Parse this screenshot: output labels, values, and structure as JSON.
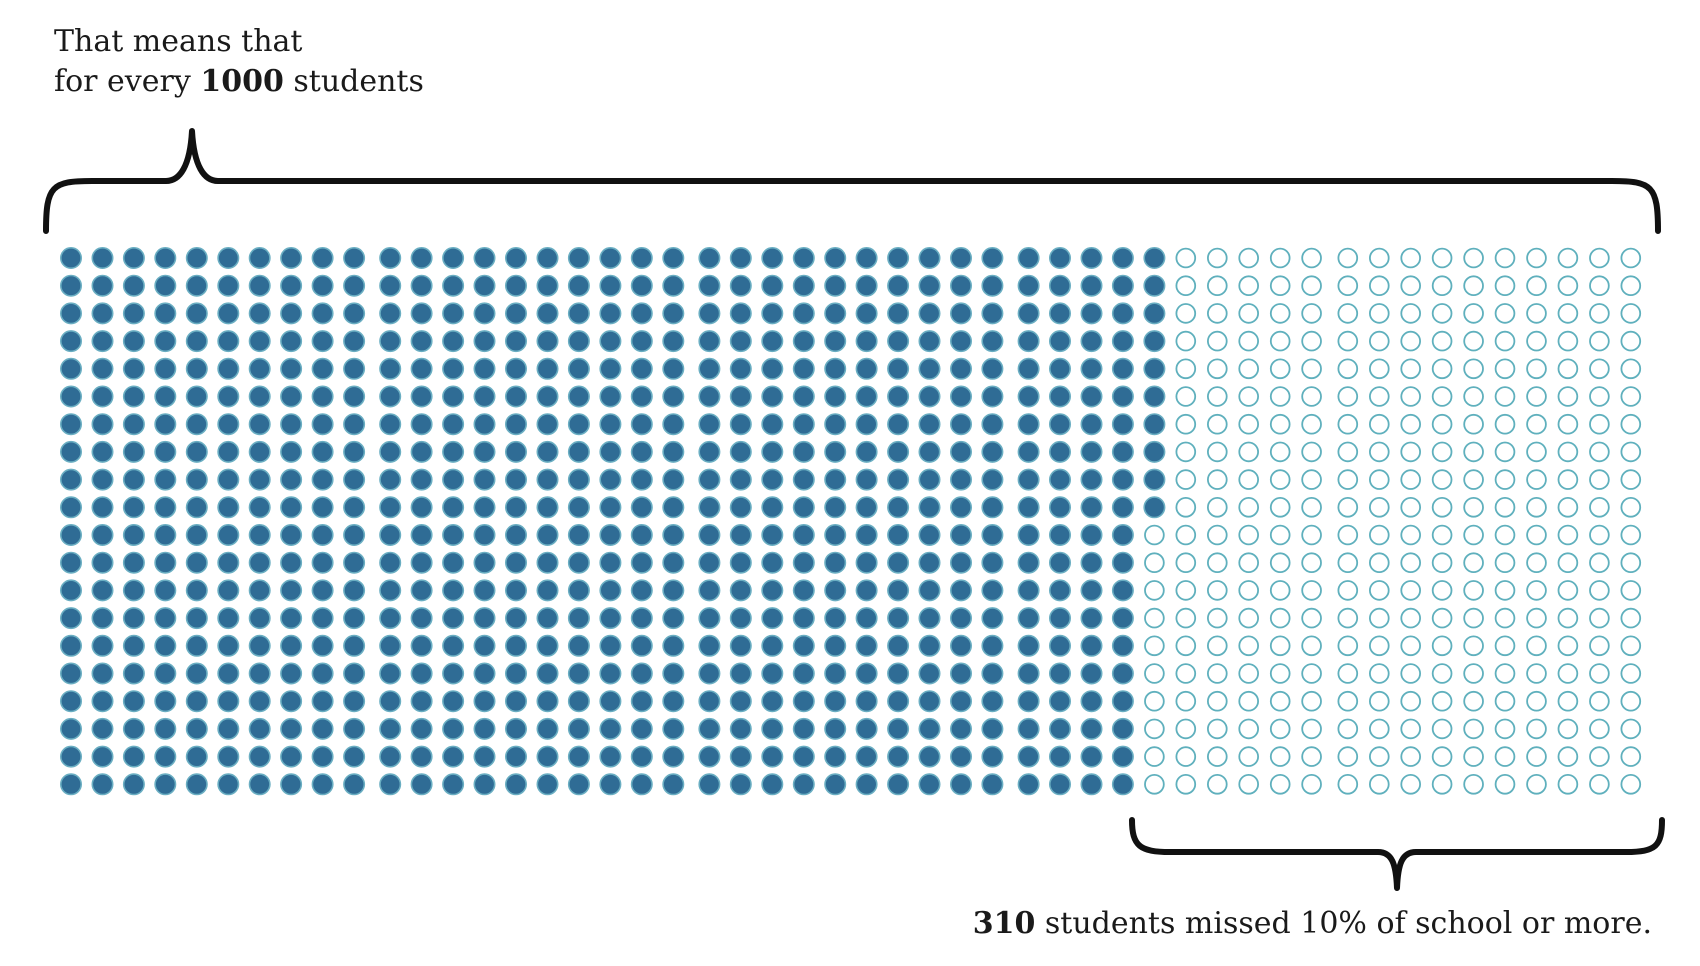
{
  "headline": {
    "line1": "That means that",
    "line2_prefix": "for every ",
    "line2_number": "1000",
    "line2_suffix": " students"
  },
  "caption": {
    "number": "310",
    "text": " students missed 10% of school or more."
  },
  "colors": {
    "filled": "#2f6c95",
    "filled_stroke": "#6aaec2",
    "empty_stroke": "#5fb0bd",
    "brace": "#111111"
  },
  "chart_data": {
    "type": "waffle",
    "total": 1000,
    "rows": 20,
    "columns": 50,
    "fill_order": "column-major from left",
    "series": [
      {
        "value": 690,
        "style": "filled"
      },
      {
        "value": 310,
        "style": "outline"
      }
    ]
  }
}
